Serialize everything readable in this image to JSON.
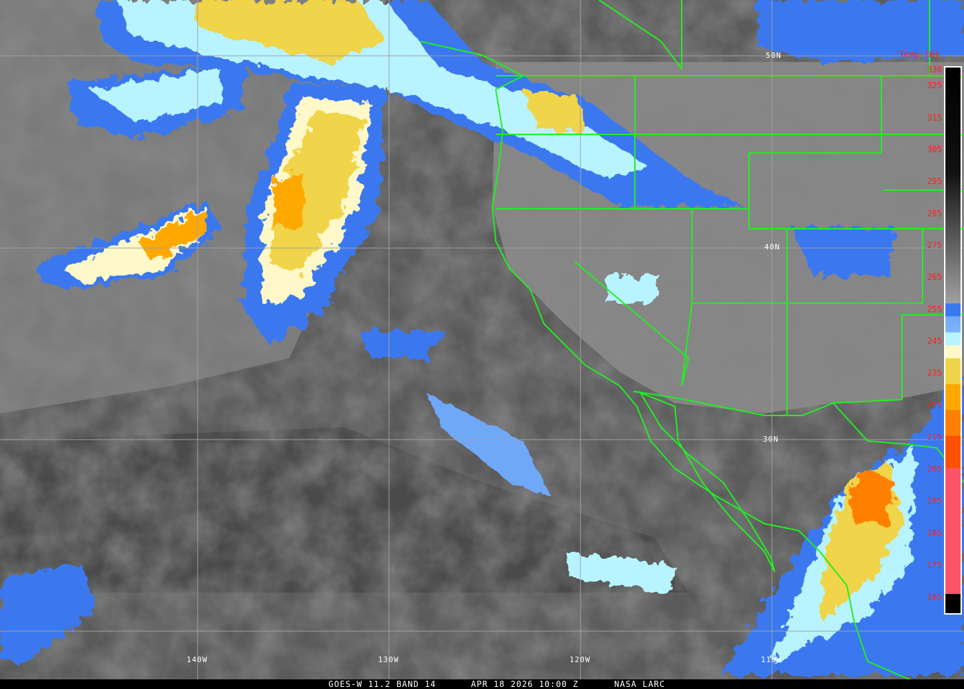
{
  "caption": {
    "satellite": "GOES-W 11.2 BAND 14",
    "datetime": "APR 18 2026 10:00 Z",
    "credit": "NASA LARC"
  },
  "latitude_labels": [
    "50N",
    "40N",
    "30N"
  ],
  "longitude_labels": [
    "140W",
    "130W",
    "120W",
    "110W"
  ],
  "colorbar": {
    "title": "Temp [K]",
    "ticks": [
      "330",
      "325",
      "315",
      "305",
      "295",
      "285",
      "275",
      "265",
      "255",
      "245",
      "235",
      "225",
      "215",
      "205",
      "195",
      "185",
      "175",
      "165"
    ],
    "tick_label_color": "#ff2020",
    "stops": [
      {
        "k": 332,
        "color": "#000000"
      },
      {
        "k": 300,
        "color": "#101010"
      },
      {
        "k": 259,
        "color": "#a0a0a0"
      },
      {
        "k": 258.9,
        "color": "#3a78f0"
      },
      {
        "k": 255,
        "color": "#3a78f0"
      },
      {
        "k": 254.9,
        "color": "#70a8f8"
      },
      {
        "k": 250,
        "color": "#80b4ff"
      },
      {
        "k": 249.9,
        "color": "#b8f4ff"
      },
      {
        "k": 246,
        "color": "#b8f4ff"
      },
      {
        "k": 245.9,
        "color": "#fff8c8"
      },
      {
        "k": 242,
        "color": "#fff8c8"
      },
      {
        "k": 241.9,
        "color": "#f0d448"
      },
      {
        "k": 234,
        "color": "#f0d448"
      },
      {
        "k": 233.9,
        "color": "#ffa800"
      },
      {
        "k": 226,
        "color": "#ffa800"
      },
      {
        "k": 225.9,
        "color": "#ff8000"
      },
      {
        "k": 218,
        "color": "#ff8000"
      },
      {
        "k": 217.9,
        "color": "#ff5000"
      },
      {
        "k": 208,
        "color": "#ff5000"
      },
      {
        "k": 207.9,
        "color": "#ff5468"
      },
      {
        "k": 169,
        "color": "#ff5468"
      },
      {
        "k": 168.9,
        "color": "#000000"
      },
      {
        "k": 163,
        "color": "#000000"
      }
    ]
  },
  "colors": {
    "border_lines": "#22ee22",
    "graticule": "#a0a0a0"
  }
}
